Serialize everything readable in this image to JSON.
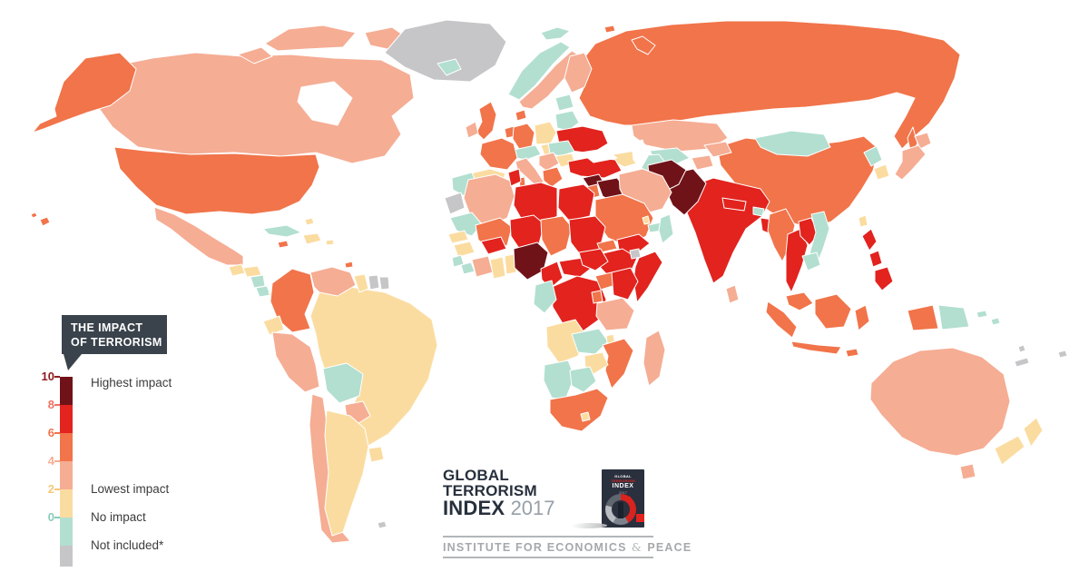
{
  "legend": {
    "header_line1": "THE IMPACT",
    "header_line2": "OF TERRORISM",
    "header_bg": "#3A434C",
    "segments": [
      {
        "tick": "10",
        "level": "l10",
        "tick_color": "#8E1B1F",
        "label": "Highest impact"
      },
      {
        "tick": "8",
        "level": "l8",
        "tick_color": "#EE7163",
        "label": ""
      },
      {
        "tick": "6",
        "level": "l6",
        "tick_color": "#F1744A",
        "label": ""
      },
      {
        "tick": "4",
        "level": "l4",
        "tick_color": "#F5AD94",
        "label": ""
      },
      {
        "tick": "2",
        "level": "l2",
        "tick_color": "#F5C878",
        "label": "Lowest impact"
      },
      {
        "tick": "0",
        "level": "l0",
        "tick_color": "#86CDB9",
        "label": "No impact"
      },
      {
        "tick": "",
        "level": "na",
        "tick_color": "",
        "label": "Not included*"
      }
    ]
  },
  "logo": {
    "line1": "GLOBAL",
    "line2": "TERRORISM",
    "line3": "INDEX",
    "year": "2017",
    "institute_pre": "INSTITUTE FOR ECONOMICS",
    "institute_amp": "&",
    "institute_post": "PEACE",
    "cover": {
      "w1": "GLOBAL",
      "w2": "TERRORISM",
      "w3": "INDEX",
      "w4": "2017"
    }
  },
  "map": {
    "palette": {
      "l10": "#701319",
      "l8": "#E2231E",
      "l6": "#F1744A",
      "l4": "#F5AD94",
      "l2": "#FBDCA0",
      "l0": "#B2DFD0",
      "na": "#C6C6C8",
      "sea": "#FFFFFF"
    },
    "level_meaning": {
      "l10": "8-10 highest impact",
      "l8": "6-8",
      "l6": "4-6",
      "l4": "2-4",
      "l2": "0-2 lowest impact",
      "l0": "0 no impact",
      "na": "not included"
    },
    "countries": {
      "greenland": "na",
      "canada": "l4",
      "alaska": "l6",
      "usa": "l6",
      "hawaii": "l6",
      "mexico": "l4",
      "guatemala": "l2",
      "honduras": "l2",
      "nicaragua": "l0",
      "costa_rica": "l0",
      "panama": "l2",
      "cuba": "l0",
      "jamaica": "l6",
      "hispaniola": "l2",
      "puerto_rico": "l2",
      "bahamas": "l2",
      "trinidad": "l6",
      "colombia": "l6",
      "venezuela": "l4",
      "guyana": "l2",
      "suriname": "na",
      "french_guiana": "na",
      "ecuador": "l2",
      "peru": "l4",
      "brazil": "l2",
      "bolivia": "l0",
      "paraguay": "l4",
      "chile": "l4",
      "argentina": "l2",
      "uruguay": "l2",
      "falklands": "na",
      "iceland": "l0",
      "norway": "l0",
      "svalbard": "l0",
      "sweden": "l4",
      "finland": "l4",
      "baltics": "l0",
      "denmark": "l6",
      "uk": "l6",
      "ireland": "l4",
      "benelux": "l6",
      "germany": "l6",
      "poland": "l2",
      "belarus": "l0",
      "ukraine": "l8",
      "czech_austria": "l0",
      "france": "l6",
      "spain": "l2",
      "portugal": "l0",
      "italy": "l4",
      "sardinia": "l6",
      "hungary": "l2",
      "romania": "l0",
      "balkans": "l4",
      "bulgaria": "l2",
      "greece": "l6",
      "cyprus": "l2",
      "russia": "l6",
      "franz_josef": "l6",
      "novaya_zemlya": "l6",
      "kazakhstan": "l4",
      "uzbekistan": "l0",
      "turkmenistan": "l0",
      "kyrgyzstan": "l4",
      "tajikistan": "l4",
      "caucasus": "l2",
      "china": "l6",
      "mongolia": "l0",
      "north_korea": "l0",
      "south_korea": "l2",
      "japan": "l4",
      "taiwan": "l2",
      "india": "l8",
      "pakistan": "l10",
      "afghanistan": "l10",
      "nepal": "l8",
      "bhutan": "l0",
      "bangladesh": "l8",
      "sri_lanka": "l4",
      "myanmar": "l6",
      "thailand": "l8",
      "laos": "l8",
      "vietnam": "l0",
      "cambodia": "l0",
      "malaysia": "l6",
      "indonesia": "l6",
      "philippines": "l8",
      "papua_new_guinea": "l0",
      "solomon": "l0",
      "vanuatu": "na",
      "new_caledonia": "na",
      "fiji": "na",
      "australia": "l4",
      "tasmania": "l4",
      "new_zealand": "l2",
      "turkey": "l8",
      "syria": "l10",
      "iraq": "l10",
      "iran": "l4",
      "israel": "l8",
      "jordan": "l6",
      "saudi_arabia": "l6",
      "qatar": "l2",
      "uae": "l0",
      "oman": "l0",
      "yemen": "l8",
      "morocco": "l0",
      "western_sahara": "na",
      "algeria": "l4",
      "tunisia": "l8",
      "libya": "l8",
      "egypt": "l8",
      "mauritania": "l0",
      "mali": "l6",
      "niger": "l8",
      "chad": "l6",
      "sudan": "l8",
      "eritrea": "l6",
      "ethiopia": "l8",
      "djibouti": "na",
      "somalia": "l8",
      "senegal": "l2",
      "guinea": "l2",
      "sierra_leone": "l0",
      "liberia": "l0",
      "ivory_coast": "l4",
      "ghana": "l2",
      "togo_benin": "l2",
      "burkina_faso": "l8",
      "nigeria": "l10",
      "cameroon": "l8",
      "central_african_republic": "l8",
      "south_sudan": "l8",
      "drc": "l8",
      "congo_gabon": "l0",
      "uganda": "l6",
      "kenya": "l8",
      "rwanda_burundi": "l6",
      "tanzania": "l4",
      "angola": "l2",
      "zambia": "l0",
      "malawi": "l2",
      "mozambique": "l6",
      "zimbabwe": "l2",
      "namibia": "l0",
      "botswana": "l0",
      "south_africa": "l6",
      "lesotho": "l2",
      "madagascar": "l4"
    }
  }
}
